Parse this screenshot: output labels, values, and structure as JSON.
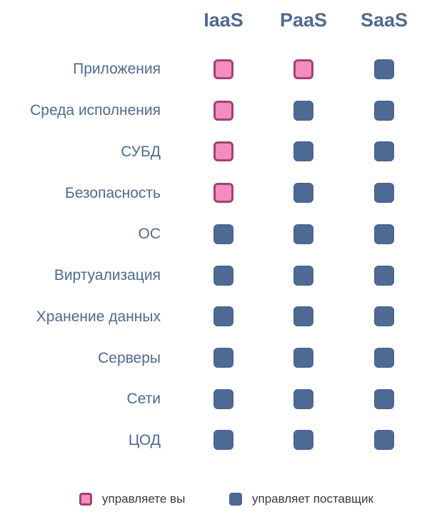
{
  "colors": {
    "header_text": "#4e6a90",
    "label_text": "#4e6a90",
    "you_fill": "#f48cc0",
    "you_border": "#a0436f",
    "provider_fill": "#4f6b94",
    "legend_text": "#333a45"
  },
  "columns": [
    "IaaS",
    "PaaS",
    "SaaS"
  ],
  "rows": [
    {
      "label": "Приложения",
      "cells": [
        "you",
        "you",
        "provider"
      ]
    },
    {
      "label": "Среда исполнения",
      "cells": [
        "you",
        "provider",
        "provider"
      ]
    },
    {
      "label": "СУБД",
      "cells": [
        "you",
        "provider",
        "provider"
      ]
    },
    {
      "label": "Безопасность",
      "cells": [
        "you",
        "provider",
        "provider"
      ]
    },
    {
      "label": "ОС",
      "cells": [
        "provider",
        "provider",
        "provider"
      ]
    },
    {
      "label": "Виртуализация",
      "cells": [
        "provider",
        "provider",
        "provider"
      ]
    },
    {
      "label": "Хранение данных",
      "cells": [
        "provider",
        "provider",
        "provider"
      ]
    },
    {
      "label": "Серверы",
      "cells": [
        "provider",
        "provider",
        "provider"
      ]
    },
    {
      "label": "Сети",
      "cells": [
        "provider",
        "provider",
        "provider"
      ]
    },
    {
      "label": "ЦОД",
      "cells": [
        "provider",
        "provider",
        "provider"
      ]
    }
  ],
  "legend": {
    "you": "управляете вы",
    "provider": "управляет поставщик"
  }
}
